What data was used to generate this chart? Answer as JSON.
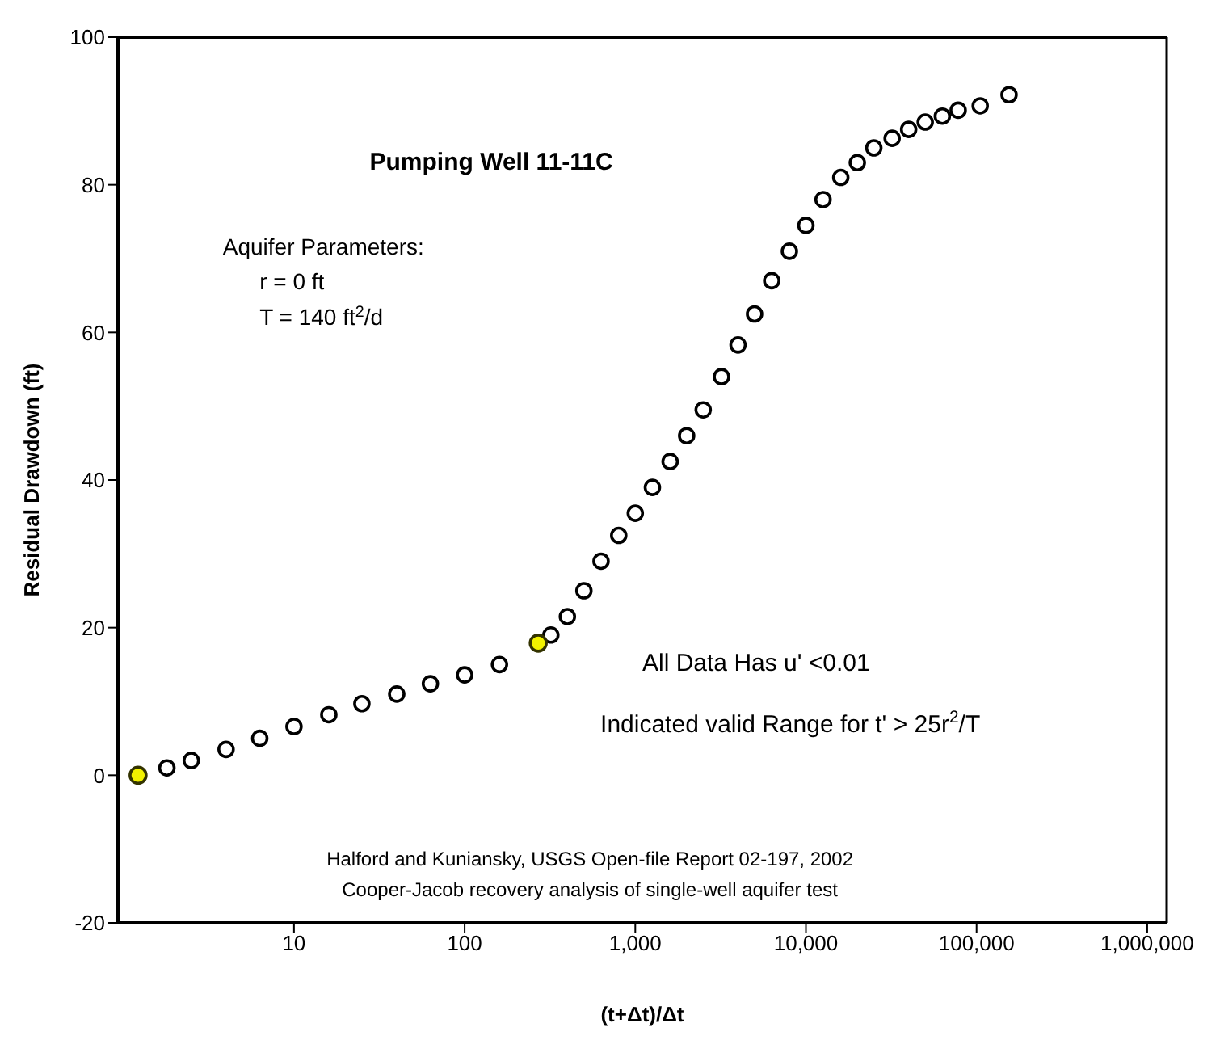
{
  "chart_data": {
    "type": "scatter",
    "title": "Pumping Well 11-11C",
    "xlabel": "(t+Δt)/Δt",
    "ylabel": "Residual Drawdown (ft)",
    "annotations": [
      "Aquifer Parameters:",
      "r = 0 ft",
      "T = 140 ft$^{2}$/d",
      "All Data Has u' <0.01",
      "Indicated valid Range for t' > 25r$^{2}$/T",
      "Halford and Kuniansky, USGS Open-file Report 02-197, 2002",
      "Cooper-Jacob recovery analysis of single-well aquifer test"
    ],
    "log": "x",
    "xlim": [
      0.93,
      1300000
    ],
    "xticks": [
      {
        "value": 10,
        "label": "10"
      },
      {
        "value": 100,
        "label": "100"
      },
      {
        "value": 1000,
        "label": "1,000"
      },
      {
        "value": 10000,
        "label": "10,000"
      },
      {
        "value": 100000,
        "label": "100,000"
      },
      {
        "value": 1000000,
        "label": "1,000,000"
      }
    ],
    "ylim": [
      -20,
      100
    ],
    "yticks": [
      -20,
      0,
      20,
      40,
      60,
      80,
      100
    ],
    "grid": false,
    "marker": "circle",
    "series": [
      {
        "color": "#000000",
        "x": [
          1.8,
          2.5,
          4,
          6.3,
          10,
          16,
          25,
          40,
          63,
          100,
          160,
          320,
          400,
          500,
          630,
          800,
          1000,
          1260,
          1600,
          2000,
          2500,
          3200,
          4000,
          5000,
          6300,
          8000,
          10000,
          12600,
          16000,
          20000,
          25000,
          32000,
          40000,
          50000,
          63000,
          78000,
          105000,
          155000
        ],
        "values": [
          1,
          2,
          3.5,
          5,
          6.6,
          8.2,
          9.7,
          11,
          12.4,
          13.6,
          15,
          19,
          21.5,
          25,
          29,
          32.5,
          35.5,
          39,
          42.5,
          46,
          49.5,
          54,
          58.3,
          62.5,
          67,
          71,
          74.5,
          78,
          81,
          83,
          85,
          86.3,
          87.5,
          88.5,
          89.3,
          90.1,
          90.7,
          92.2
        ]
      },
      {
        "color": "#f2f200",
        "x": [
          1.22,
          270
        ],
        "values": [
          0,
          17.9
        ]
      }
    ]
  }
}
